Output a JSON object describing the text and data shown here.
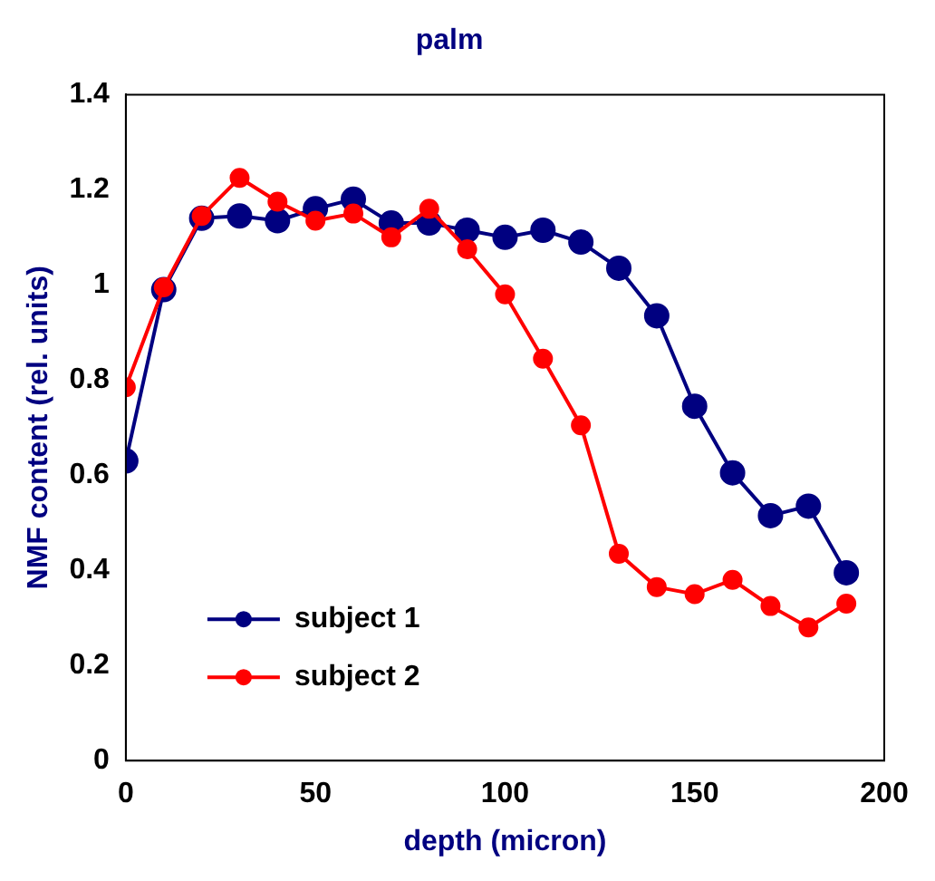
{
  "chart_data": {
    "type": "line",
    "title": "palm",
    "xlabel": "depth (micron)",
    "ylabel": "NMF content (rel. units)",
    "x": [
      0,
      10,
      20,
      30,
      40,
      50,
      60,
      70,
      80,
      90,
      100,
      110,
      120,
      130,
      140,
      150,
      160,
      170,
      180,
      190
    ],
    "series": [
      {
        "name": "subject 1",
        "color": "#000080",
        "values": [
          0.63,
          0.99,
          1.14,
          1.145,
          1.135,
          1.16,
          1.18,
          1.13,
          1.13,
          1.115,
          1.1,
          1.115,
          1.09,
          1.035,
          0.935,
          0.745,
          0.605,
          0.515,
          0.535,
          0.395
        ]
      },
      {
        "name": "subject 2",
        "color": "#ff0000",
        "values": [
          0.785,
          0.995,
          1.145,
          1.225,
          1.175,
          1.135,
          1.15,
          1.1,
          1.16,
          1.075,
          0.98,
          0.845,
          0.705,
          0.435,
          0.365,
          0.35,
          0.38,
          0.325,
          0.28,
          0.33
        ]
      }
    ],
    "xlim": [
      0,
      200
    ],
    "xticks": [
      0,
      50,
      100,
      150,
      200
    ],
    "ylim": [
      0,
      1.4
    ],
    "yticks": [
      0,
      0.2,
      0.4,
      0.6,
      0.8,
      1,
      1.2,
      1.4
    ],
    "grid": false,
    "legend": "bottom left",
    "marker": "circle",
    "line_style": "solid"
  }
}
